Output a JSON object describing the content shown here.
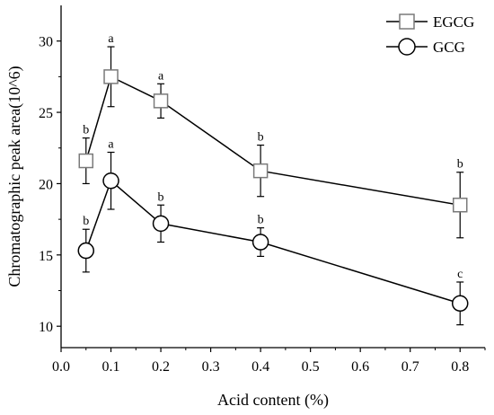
{
  "chart_data": {
    "type": "line",
    "xlabel": "Acid content (%)",
    "ylabel": "Chromatographic peak area(10^6)",
    "xlim": [
      0.0,
      0.85
    ],
    "ylim": [
      8.5,
      32.5
    ],
    "x_ticks": [
      "0.0",
      "0.1",
      "0.2",
      "0.3",
      "0.4",
      "0.5",
      "0.6",
      "0.7",
      "0.8"
    ],
    "y_ticks": [
      "10",
      "15",
      "20",
      "25",
      "30"
    ],
    "x_tick_values": [
      0.0,
      0.1,
      0.2,
      0.3,
      0.4,
      0.5,
      0.6,
      0.7,
      0.8
    ],
    "y_tick_values": [
      10,
      15,
      20,
      25,
      30
    ],
    "legend_position": "top-right",
    "series": [
      {
        "name": "EGCG",
        "marker": "square",
        "x": [
          0.05,
          0.1,
          0.2,
          0.4,
          0.8
        ],
        "y": [
          21.6,
          27.5,
          25.8,
          20.9,
          18.5
        ],
        "error": [
          1.6,
          2.1,
          1.2,
          1.8,
          2.3
        ],
        "labels": [
          "b",
          "a",
          "a",
          "b",
          "b"
        ]
      },
      {
        "name": "GCG",
        "marker": "circle",
        "x": [
          0.05,
          0.1,
          0.2,
          0.4,
          0.8
        ],
        "y": [
          15.3,
          20.2,
          17.2,
          15.9,
          11.6
        ],
        "error": [
          1.5,
          2.0,
          1.3,
          1.0,
          1.5
        ],
        "labels": [
          "b",
          "a",
          "b",
          "b",
          "c"
        ]
      }
    ]
  },
  "colors": {
    "line": "#000000",
    "marker_stroke": "#000000",
    "square_stroke": "#7a7a7a",
    "marker_fill": "#ffffff"
  }
}
